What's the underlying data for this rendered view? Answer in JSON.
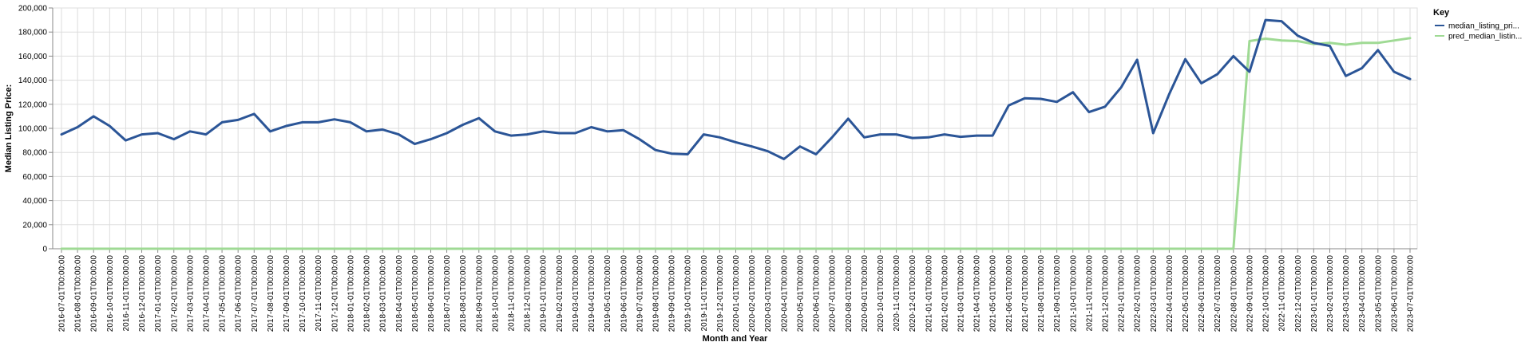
{
  "chart_data": {
    "type": "line",
    "xlabel": "Month and Year",
    "ylabel": "Median Listing Price:",
    "ylim": [
      0,
      200000
    ],
    "yticks": [
      "0",
      "20,000",
      "40,000",
      "60,000",
      "80,000",
      "100,000",
      "120,000",
      "140,000",
      "160,000",
      "180,000",
      "200,000"
    ],
    "grid": true,
    "legend": {
      "title": "Key",
      "placement": "right"
    },
    "x": [
      "2016-07-01T00:00:00",
      "2016-08-01T00:00:00",
      "2016-09-01T00:00:00",
      "2016-10-01T00:00:00",
      "2016-11-01T00:00:00",
      "2016-12-01T00:00:00",
      "2017-01-01T00:00:00",
      "2017-02-01T00:00:00",
      "2017-03-01T00:00:00",
      "2017-04-01T00:00:00",
      "2017-05-01T00:00:00",
      "2017-06-01T00:00:00",
      "2017-07-01T00:00:00",
      "2017-08-01T00:00:00",
      "2017-09-01T00:00:00",
      "2017-10-01T00:00:00",
      "2017-11-01T00:00:00",
      "2017-12-01T00:00:00",
      "2018-01-01T00:00:00",
      "2018-02-01T00:00:00",
      "2018-03-01T00:00:00",
      "2018-04-01T00:00:00",
      "2018-05-01T00:00:00",
      "2018-06-01T00:00:00",
      "2018-07-01T00:00:00",
      "2018-08-01T00:00:00",
      "2018-09-01T00:00:00",
      "2018-10-01T00:00:00",
      "2018-11-01T00:00:00",
      "2018-12-01T00:00:00",
      "2019-01-01T00:00:00",
      "2019-02-01T00:00:00",
      "2019-03-01T00:00:00",
      "2019-04-01T00:00:00",
      "2019-05-01T00:00:00",
      "2019-06-01T00:00:00",
      "2019-07-01T00:00:00",
      "2019-08-01T00:00:00",
      "2019-09-01T00:00:00",
      "2019-10-01T00:00:00",
      "2019-11-01T00:00:00",
      "2019-12-01T00:00:00",
      "2020-01-01T00:00:00",
      "2020-02-01T00:00:00",
      "2020-03-01T00:00:00",
      "2020-04-01T00:00:00",
      "2020-05-01T00:00:00",
      "2020-06-01T00:00:00",
      "2020-07-01T00:00:00",
      "2020-08-01T00:00:00",
      "2020-09-01T00:00:00",
      "2020-10-01T00:00:00",
      "2020-11-01T00:00:00",
      "2020-12-01T00:00:00",
      "2021-01-01T00:00:00",
      "2021-02-01T00:00:00",
      "2021-03-01T00:00:00",
      "2021-04-01T00:00:00",
      "2021-05-01T00:00:00",
      "2021-06-01T00:00:00",
      "2021-07-01T00:00:00",
      "2021-08-01T00:00:00",
      "2021-09-01T00:00:00",
      "2021-10-01T00:00:00",
      "2021-11-01T00:00:00",
      "2021-12-01T00:00:00",
      "2022-01-01T00:00:00",
      "2022-02-01T00:00:00",
      "2022-03-01T00:00:00",
      "2022-04-01T00:00:00",
      "2022-05-01T00:00:00",
      "2022-06-01T00:00:00",
      "2022-07-01T00:00:00",
      "2022-08-01T00:00:00",
      "2022-09-01T00:00:00",
      "2022-10-01T00:00:00",
      "2022-11-01T00:00:00",
      "2022-12-01T00:00:00",
      "2023-01-01T00:00:00",
      "2023-02-01T00:00:00",
      "2023-03-01T00:00:00",
      "2023-04-01T00:00:00",
      "2023-05-01T00:00:00",
      "2023-06-01T00:00:00",
      "2023-07-01T00:00:00"
    ],
    "series": [
      {
        "name": "median_listing_pri...",
        "color": "#2b5597",
        "values": [
          95000,
          101000,
          110000,
          102000,
          90000,
          95000,
          96000,
          91000,
          97500,
          95000,
          105000,
          107000,
          112000,
          97500,
          102000,
          105000,
          105000,
          107500,
          105000,
          97500,
          99000,
          95000,
          87000,
          91000,
          96000,
          103000,
          108500,
          97500,
          94000,
          95000,
          97500,
          96000,
          96000,
          101000,
          97500,
          98500,
          91000,
          82000,
          79000,
          78500,
          95000,
          92500,
          88500,
          85000,
          81000,
          74500,
          85000,
          78500,
          92500,
          108000,
          92500,
          95000,
          95000,
          92000,
          92500,
          95000,
          93000,
          94000,
          94000,
          119000,
          125000,
          124500,
          122000,
          130000,
          113500,
          118000,
          134000,
          157000,
          96000,
          128500,
          157500,
          137500,
          145000,
          160000,
          147000,
          190000,
          189000,
          177000,
          171000,
          168500,
          143500,
          150000,
          165000,
          147000,
          141000
        ]
      },
      {
        "name": "pred_median_listin...",
        "color": "#9fda94",
        "values": [
          0,
          0,
          0,
          0,
          0,
          0,
          0,
          0,
          0,
          0,
          0,
          0,
          0,
          0,
          0,
          0,
          0,
          0,
          0,
          0,
          0,
          0,
          0,
          0,
          0,
          0,
          0,
          0,
          0,
          0,
          0,
          0,
          0,
          0,
          0,
          0,
          0,
          0,
          0,
          0,
          0,
          0,
          0,
          0,
          0,
          0,
          0,
          0,
          0,
          0,
          0,
          0,
          0,
          0,
          0,
          0,
          0,
          0,
          0,
          0,
          0,
          0,
          0,
          0,
          0,
          0,
          0,
          0,
          0,
          0,
          0,
          0,
          0,
          0,
          172500,
          174500,
          173000,
          172500,
          170000,
          171000,
          169500,
          171000,
          171000,
          173000,
          175000
        ]
      }
    ]
  }
}
